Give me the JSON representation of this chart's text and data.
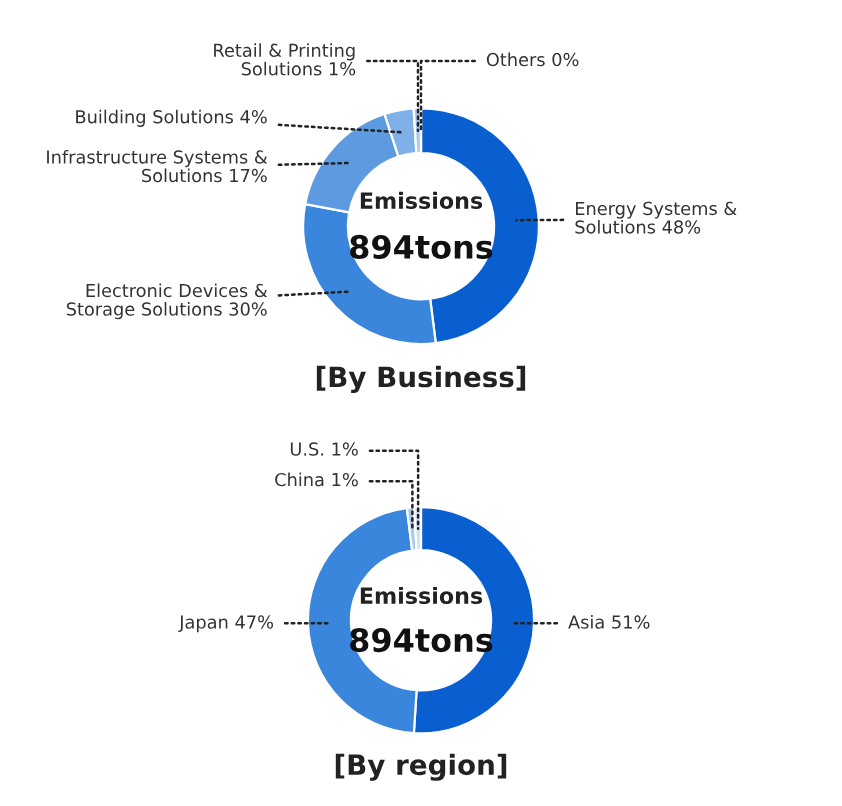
{
  "chart_data": [
    {
      "type": "donut",
      "title": "[By Business]",
      "annotations": [
        "Emissions",
        "894tons"
      ],
      "categories": [
        "Energy Systems & Solutions",
        "Electronic Devices & Storage Solutions",
        "Infrastructure Systems & Solutions",
        "Building Solutions",
        "Retail & Printing Solutions",
        "Others"
      ],
      "values": [
        48,
        30,
        17,
        4,
        1,
        0
      ],
      "value_labels": [
        "48%",
        "30%",
        "17%",
        "4%",
        "1%",
        "0%"
      ],
      "colors": [
        "#0a5fd0",
        "#3a86dc",
        "#5d9ae0",
        "#80b0e8",
        "#a9c9f0",
        "#d8e6f8"
      ]
    },
    {
      "type": "donut",
      "title": "[By region]",
      "annotations": [
        "Emissions",
        "894tons"
      ],
      "categories": [
        "Asia",
        "Japan",
        "China",
        "U.S."
      ],
      "values": [
        51,
        47,
        1,
        1
      ],
      "value_labels": [
        "51%",
        "47%",
        "1%",
        "1%"
      ],
      "colors": [
        "#0a5fd0",
        "#3a86dc",
        "#a9c9f0",
        "#cfe0f5"
      ]
    }
  ]
}
